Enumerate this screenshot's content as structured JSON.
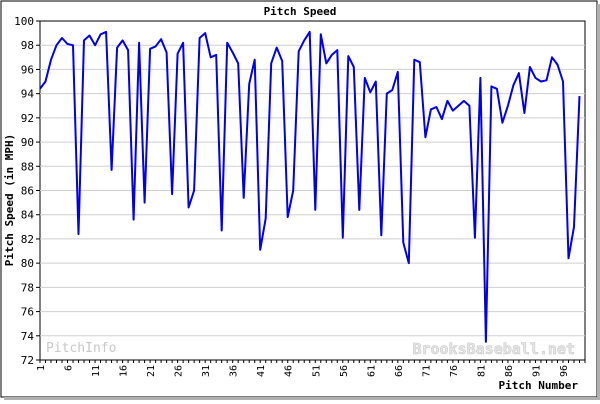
{
  "chart_data": {
    "type": "line",
    "title": "Pitch Speed",
    "xlabel": "Pitch Number",
    "ylabel": "Pitch Speed (in MPH)",
    "xlim": [
      1,
      100
    ],
    "ylim": [
      72,
      100
    ],
    "grid": true,
    "y_ticks": [
      72,
      74,
      76,
      78,
      80,
      82,
      84,
      86,
      88,
      90,
      92,
      94,
      96,
      98,
      100
    ],
    "x_ticks": [
      1,
      6,
      11,
      16,
      21,
      26,
      31,
      36,
      41,
      46,
      51,
      56,
      61,
      66,
      71,
      76,
      81,
      86,
      91,
      96
    ],
    "series": [
      {
        "color": "#0000ee",
        "x": [
          1,
          2,
          3,
          4,
          5,
          6,
          7,
          8,
          9,
          10,
          11,
          12,
          13,
          14,
          15,
          16,
          17,
          18,
          19,
          20,
          21,
          22,
          23,
          24,
          25,
          26,
          27,
          28,
          29,
          30,
          31,
          32,
          33,
          34,
          35,
          36,
          37,
          38,
          39,
          40,
          41,
          42,
          43,
          44,
          45,
          46,
          47,
          48,
          49,
          50,
          51,
          52,
          53,
          54,
          55,
          56,
          57,
          58,
          59,
          60,
          61,
          62,
          63,
          64,
          65,
          66,
          67,
          68,
          69,
          70,
          71,
          72,
          73,
          74,
          75,
          76,
          77,
          78,
          79,
          80,
          81,
          82,
          83,
          84,
          85,
          86,
          87,
          88,
          89,
          90,
          91,
          92,
          93,
          94,
          95,
          96,
          97,
          98,
          99,
          100
        ],
        "values": [
          94.4,
          95.0,
          96.8,
          98.0,
          98.6,
          98.1,
          98.0,
          82.4,
          98.4,
          98.8,
          98.0,
          98.9,
          99.1,
          87.7,
          97.8,
          98.4,
          97.6,
          83.6,
          98.2,
          85.0,
          97.7,
          97.9,
          98.5,
          97.4,
          85.7,
          97.3,
          98.2,
          84.6,
          86.0,
          98.6,
          99.0,
          97.0,
          97.2,
          82.7,
          98.2,
          97.4,
          96.5,
          85.4,
          94.8,
          96.8,
          81.1,
          83.7,
          96.5,
          97.8,
          96.7,
          83.8,
          86.0,
          97.5,
          98.4,
          99.1,
          84.4,
          98.9,
          96.5,
          97.2,
          97.6,
          82.1,
          97.1,
          96.2,
          84.4,
          95.3,
          94.1,
          95.0,
          82.3,
          94.0,
          94.3,
          95.8,
          81.7,
          80.0,
          96.8,
          96.6,
          90.4,
          92.7,
          92.9,
          91.9,
          93.4,
          92.6,
          93.0,
          93.4,
          93.0,
          82.1,
          95.3,
          73.5,
          94.6,
          94.4,
          91.6,
          93.0,
          94.7,
          95.7,
          92.4,
          96.2,
          95.3,
          95.0,
          95.1,
          97.0,
          96.4,
          95.0,
          80.4,
          83.0,
          93.8,
          null
        ]
      }
    ],
    "watermarks": [
      "PitchInfo",
      "BrooksBaseball.net"
    ]
  }
}
